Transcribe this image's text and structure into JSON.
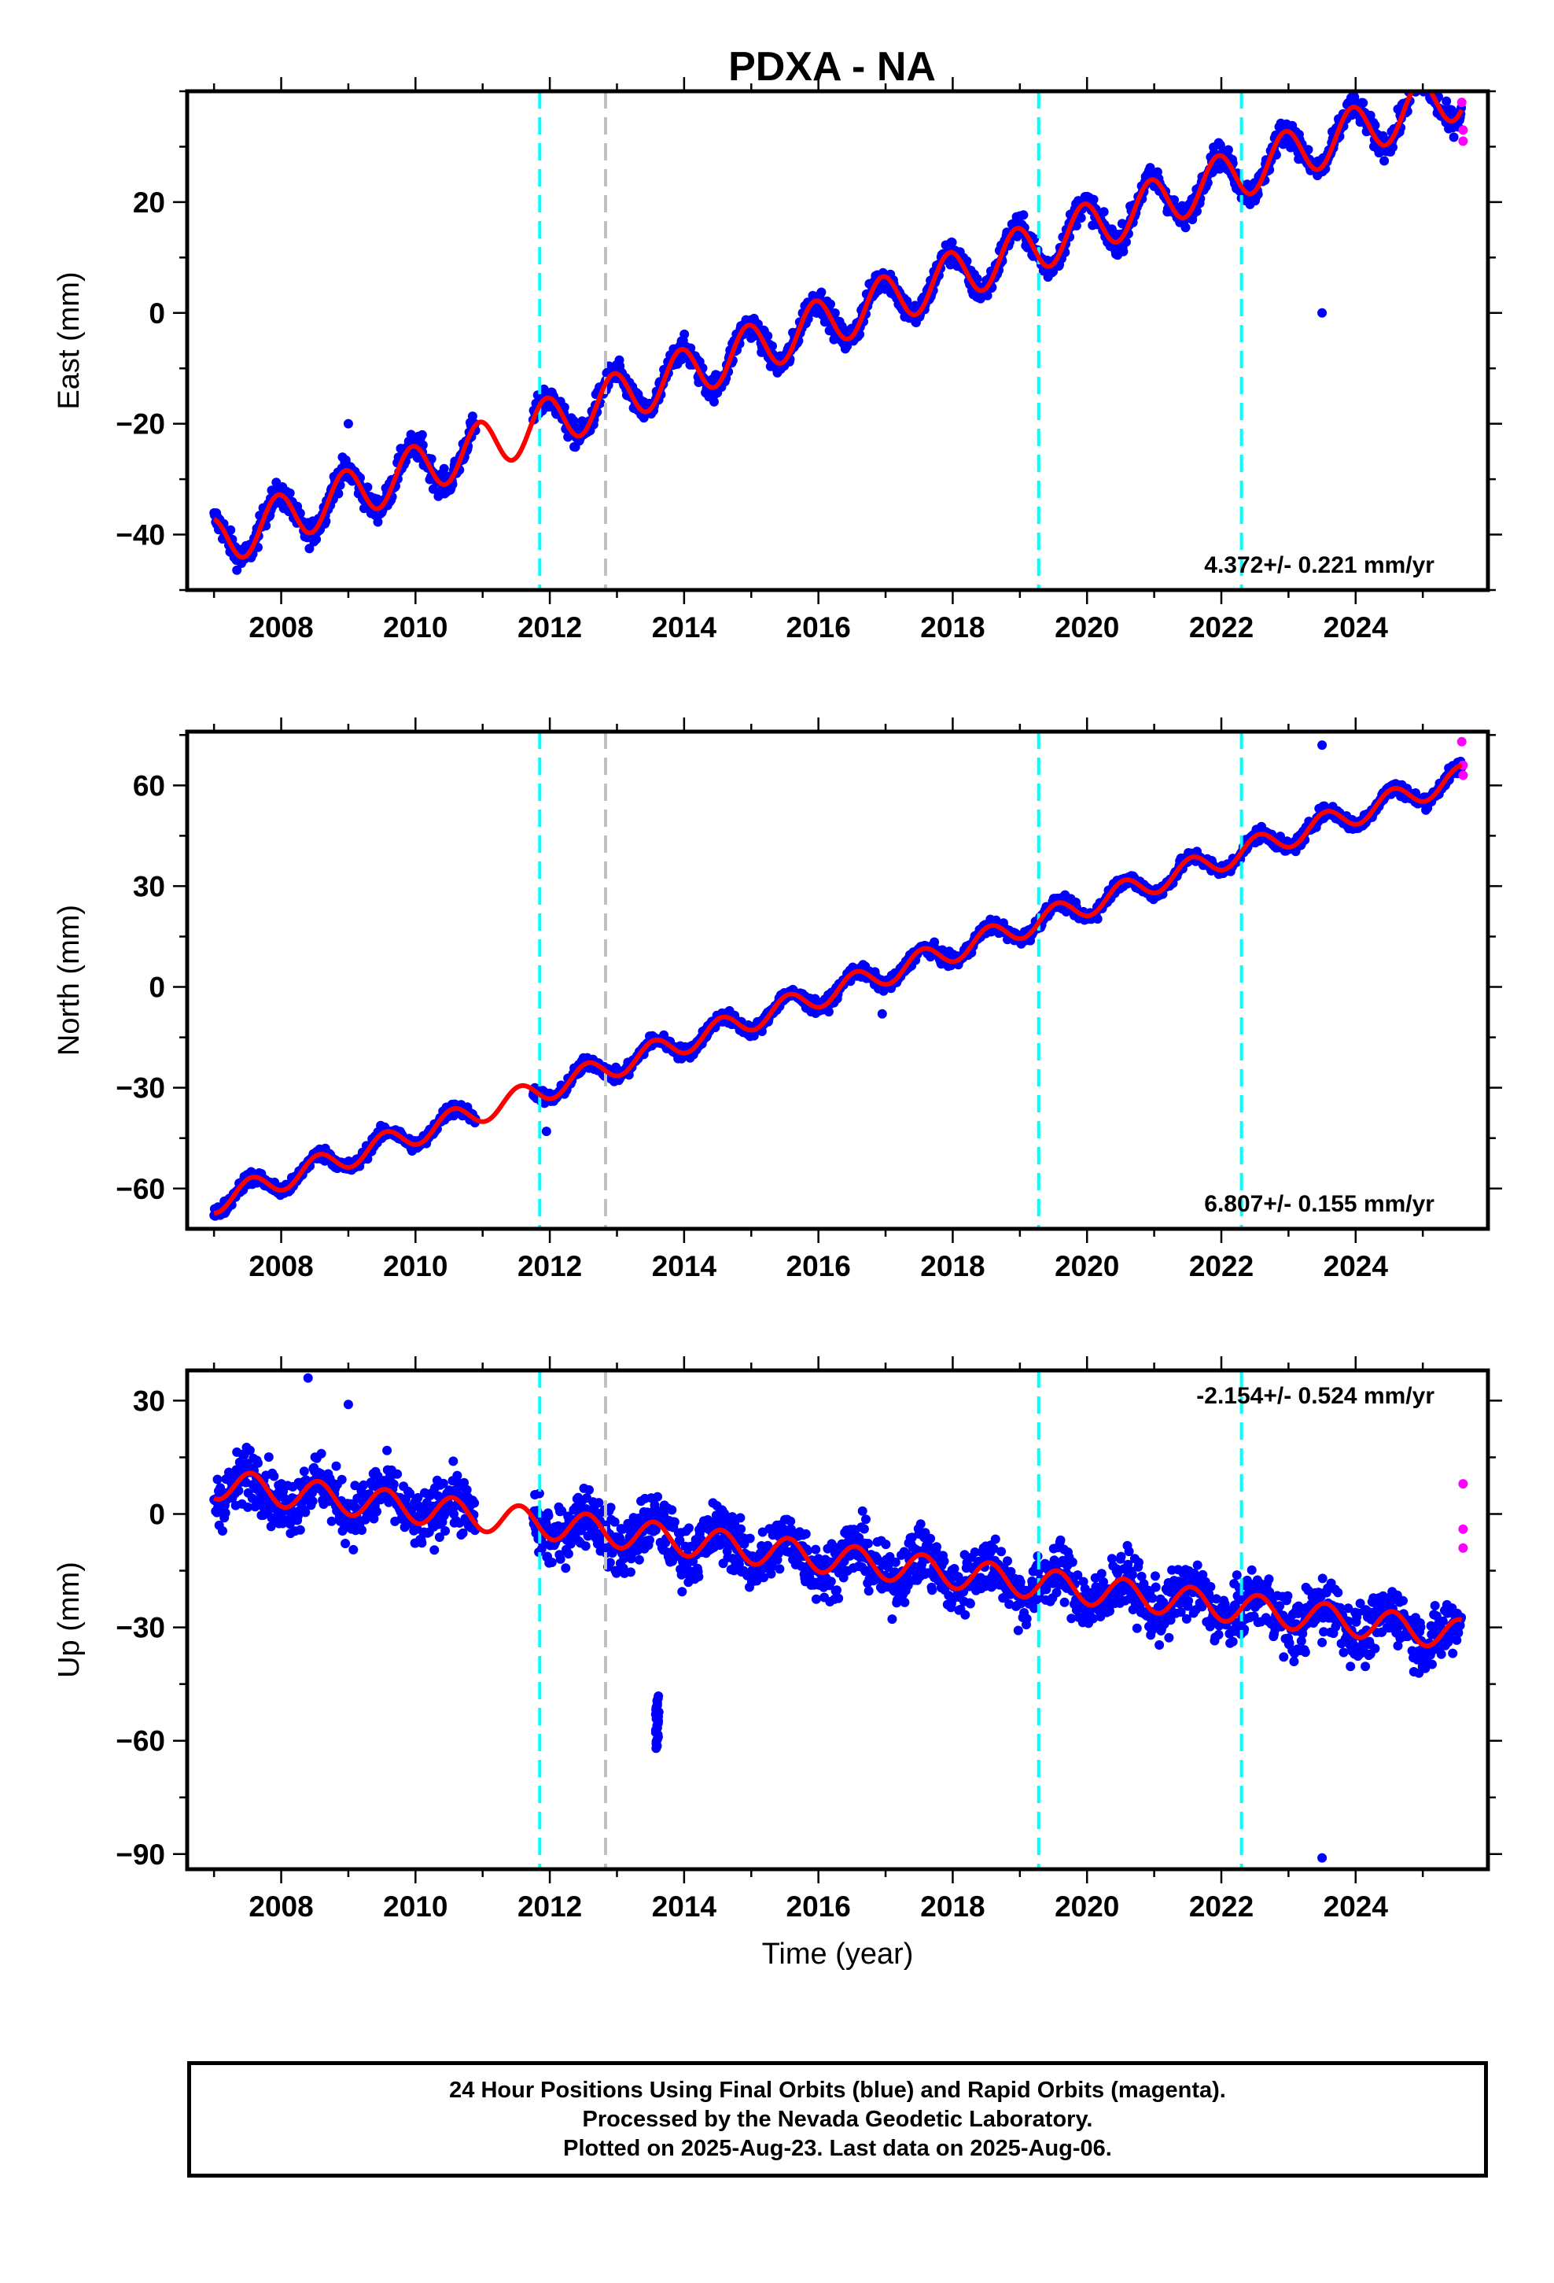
{
  "title": "PDXA - NA",
  "footer": {
    "line1": "24 Hour Positions Using Final Orbits (blue) and Rapid Orbits (magenta).",
    "line2": "Processed by the Nevada Geodetic Laboratory.",
    "line3": "Plotted on 2025-Aug-23. Last data on 2025-Aug-06."
  },
  "colors": {
    "final_orbit": "#0000ff",
    "rapid_orbit": "#ff00ff",
    "model": "#ff0000",
    "equipment_change": "#00ffff",
    "other_event": "#c0c0c0"
  },
  "chart_data": [
    {
      "type": "scatter",
      "ylabel": "East (mm)",
      "xlabel": "",
      "xlim": [
        2006.6,
        2025.97
      ],
      "ylim": [
        -50,
        40
      ],
      "xticks": [
        2008,
        2010,
        2012,
        2014,
        2016,
        2018,
        2020,
        2022,
        2024
      ],
      "yticks": [
        -40,
        -20,
        0,
        20
      ],
      "rate_label": "4.372+/- 0.221 mm/yr",
      "rate_position": "bottom-right",
      "model": {
        "rate": 4.372,
        "value_at_2007": -41.5,
        "annual_amplitude": 4.5,
        "annual_peak_phase": 0.95
      },
      "data_gap": [
        2010.9,
        2011.75
      ],
      "scatter_spread": 1.6,
      "outliers": [
        {
          "x": 2009.0,
          "y": -20
        },
        {
          "x": 2010.1,
          "y": -22
        },
        {
          "x": 2023.5,
          "y": 0
        }
      ],
      "rapid_points": [
        {
          "x": 2025.58,
          "y": 38
        },
        {
          "x": 2025.6,
          "y": 33
        },
        {
          "x": 2025.6,
          "y": 31
        }
      ],
      "event_lines": [
        {
          "x": 2011.85,
          "kind": "equipment_change"
        },
        {
          "x": 2012.83,
          "kind": "other_event"
        },
        {
          "x": 2019.28,
          "kind": "equipment_change"
        },
        {
          "x": 2022.3,
          "kind": "equipment_change"
        }
      ]
    },
    {
      "type": "scatter",
      "ylabel": "North (mm)",
      "xlabel": "",
      "xlim": [
        2006.6,
        2025.97
      ],
      "ylim": [
        -72,
        76
      ],
      "xticks": [
        2008,
        2010,
        2012,
        2014,
        2016,
        2018,
        2020,
        2022,
        2024
      ],
      "yticks": [
        -60,
        -30,
        0,
        30,
        60
      ],
      "rate_label": "6.807+/- 0.155 mm/yr",
      "rate_position": "bottom-right",
      "model": {
        "rate": 6.807,
        "value_at_2007": -64,
        "annual_amplitude": 3.5,
        "annual_peak_phase": 0.55
      },
      "data_gap": [
        2010.9,
        2011.75
      ],
      "scatter_spread": 1.4,
      "outliers": [
        {
          "x": 2011.95,
          "y": -43
        },
        {
          "x": 2016.95,
          "y": -8
        },
        {
          "x": 2023.5,
          "y": 72
        }
      ],
      "rapid_points": [
        {
          "x": 2025.58,
          "y": 73
        },
        {
          "x": 2025.6,
          "y": 66
        },
        {
          "x": 2025.6,
          "y": 63
        }
      ],
      "event_lines": [
        {
          "x": 2011.85,
          "kind": "equipment_change"
        },
        {
          "x": 2012.83,
          "kind": "other_event"
        },
        {
          "x": 2019.28,
          "kind": "equipment_change"
        },
        {
          "x": 2022.3,
          "kind": "equipment_change"
        }
      ]
    },
    {
      "type": "scatter",
      "ylabel": "Up (mm)",
      "xlabel": "Time (year)",
      "xlim": [
        2006.6,
        2025.97
      ],
      "ylim": [
        -94,
        38
      ],
      "xticks": [
        2008,
        2010,
        2012,
        2014,
        2016,
        2018,
        2020,
        2022,
        2024
      ],
      "yticks": [
        -90,
        -60,
        -30,
        0,
        30
      ],
      "rate_label": "-2.154+/- 0.524 mm/yr",
      "rate_position": "top-right",
      "model": {
        "rate": -2.154,
        "value_at_2007": 8,
        "annual_amplitude": 4,
        "annual_peak_phase": 0.55
      },
      "data_gap": [
        2010.9,
        2011.75
      ],
      "scatter_spread": 5.5,
      "outliers": [
        {
          "x": 2008.4,
          "y": 36
        },
        {
          "x": 2009.0,
          "y": 29
        },
        {
          "x": 2023.5,
          "y": -34
        },
        {
          "x": 2023.5,
          "y": -91
        }
      ],
      "cluster": {
        "x": 2013.6,
        "y_min": -62,
        "y_max": -48
      },
      "rapid_points": [
        {
          "x": 2025.6,
          "y": 8
        },
        {
          "x": 2025.6,
          "y": -4
        },
        {
          "x": 2025.6,
          "y": -9
        }
      ],
      "event_lines": [
        {
          "x": 2011.85,
          "kind": "equipment_change"
        },
        {
          "x": 2012.83,
          "kind": "other_event"
        },
        {
          "x": 2019.28,
          "kind": "equipment_change"
        },
        {
          "x": 2022.3,
          "kind": "equipment_change"
        }
      ]
    }
  ]
}
